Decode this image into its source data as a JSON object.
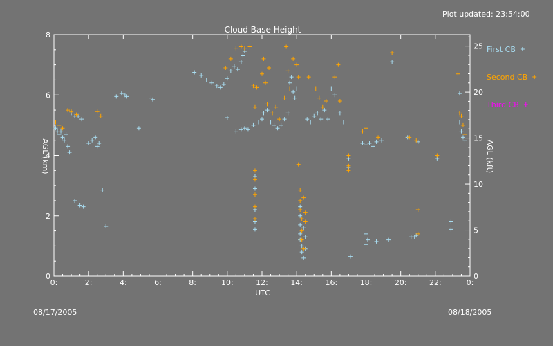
{
  "header": {
    "updated": "Plot updated: 23:54:00"
  },
  "dates": {
    "start": "08/17/2005",
    "end": "08/18/2005"
  },
  "chart_data": {
    "type": "scatter",
    "title": "Cloud Base Height",
    "xlabel": "UTC",
    "ylabel": "AGL (km)",
    "ylabel_right": "AGL (kft)",
    "xlim": [
      0,
      24
    ],
    "ylim": [
      0,
      8
    ],
    "ylim_right": [
      0,
      26.25
    ],
    "xticks": [
      "0:",
      "2:",
      "4:",
      "6:",
      "8:",
      "10:",
      "12:",
      "14:",
      "16:",
      "18:",
      "20:",
      "22:",
      "0:"
    ],
    "yticks": [
      "0",
      "2",
      "4",
      "6",
      "8"
    ],
    "yticks_right": [
      "0",
      "5",
      "10",
      "15",
      "20",
      "25"
    ],
    "grid": false,
    "legend_position": "right",
    "marker": "+",
    "series": [
      {
        "name": "First CB",
        "color": "#a8dcf0",
        "points": [
          [
            0.1,
            4.9
          ],
          [
            0.2,
            4.8
          ],
          [
            0.3,
            4.7
          ],
          [
            0.4,
            4.8
          ],
          [
            0.5,
            4.6
          ],
          [
            0.6,
            4.5
          ],
          [
            0.7,
            4.7
          ],
          [
            0.8,
            4.3
          ],
          [
            0.9,
            4.1
          ],
          [
            1.0,
            5.4
          ],
          [
            1.2,
            5.3
          ],
          [
            1.4,
            5.3
          ],
          [
            1.6,
            5.2
          ],
          [
            1.2,
            2.5
          ],
          [
            1.5,
            2.35
          ],
          [
            1.7,
            2.3
          ],
          [
            2.0,
            4.4
          ],
          [
            2.2,
            4.5
          ],
          [
            2.4,
            4.6
          ],
          [
            2.5,
            4.3
          ],
          [
            2.6,
            4.4
          ],
          [
            2.8,
            2.85
          ],
          [
            3.0,
            1.65
          ],
          [
            3.6,
            5.95
          ],
          [
            3.9,
            6.05
          ],
          [
            4.1,
            6.0
          ],
          [
            4.2,
            5.95
          ],
          [
            4.9,
            4.9
          ],
          [
            5.6,
            5.9
          ],
          [
            5.7,
            5.85
          ],
          [
            8.1,
            6.75
          ],
          [
            8.5,
            6.65
          ],
          [
            8.8,
            6.5
          ],
          [
            9.1,
            6.4
          ],
          [
            9.4,
            6.3
          ],
          [
            9.6,
            6.25
          ],
          [
            9.8,
            6.35
          ],
          [
            10.0,
            6.55
          ],
          [
            10.2,
            6.8
          ],
          [
            10.4,
            6.95
          ],
          [
            10.6,
            6.85
          ],
          [
            10.8,
            7.1
          ],
          [
            10.9,
            7.3
          ],
          [
            11.0,
            7.45
          ],
          [
            10.0,
            5.25
          ],
          [
            10.5,
            4.8
          ],
          [
            10.8,
            4.85
          ],
          [
            11.0,
            4.9
          ],
          [
            11.2,
            4.85
          ],
          [
            11.5,
            5.0
          ],
          [
            11.6,
            3.3
          ],
          [
            11.6,
            2.9
          ],
          [
            11.6,
            2.2
          ],
          [
            11.6,
            1.8
          ],
          [
            11.6,
            1.55
          ],
          [
            11.8,
            5.1
          ],
          [
            12.0,
            5.2
          ],
          [
            12.1,
            5.4
          ],
          [
            12.3,
            5.5
          ],
          [
            12.5,
            5.1
          ],
          [
            12.7,
            5.0
          ],
          [
            12.9,
            4.9
          ],
          [
            13.1,
            5.0
          ],
          [
            13.3,
            5.2
          ],
          [
            13.5,
            5.4
          ],
          [
            13.6,
            6.4
          ],
          [
            13.7,
            6.6
          ],
          [
            13.8,
            6.1
          ],
          [
            13.9,
            5.9
          ],
          [
            14.0,
            6.2
          ],
          [
            14.2,
            2.3
          ],
          [
            14.2,
            2.0
          ],
          [
            14.2,
            1.7
          ],
          [
            14.2,
            1.4
          ],
          [
            14.2,
            1.2
          ],
          [
            14.3,
            1.0
          ],
          [
            14.3,
            0.8
          ],
          [
            14.4,
            0.6
          ],
          [
            14.4,
            1.6
          ],
          [
            14.5,
            1.3
          ],
          [
            14.5,
            0.9
          ],
          [
            14.6,
            5.2
          ],
          [
            14.8,
            5.1
          ],
          [
            15.0,
            5.3
          ],
          [
            15.2,
            5.4
          ],
          [
            15.4,
            5.2
          ],
          [
            15.6,
            5.5
          ],
          [
            15.8,
            5.2
          ],
          [
            16.0,
            6.2
          ],
          [
            16.2,
            6.0
          ],
          [
            16.5,
            5.4
          ],
          [
            16.7,
            5.1
          ],
          [
            17.0,
            3.9
          ],
          [
            17.0,
            3.6
          ],
          [
            17.1,
            0.65
          ],
          [
            17.8,
            4.4
          ],
          [
            18.0,
            4.35
          ],
          [
            18.2,
            4.4
          ],
          [
            18.4,
            4.3
          ],
          [
            18.6,
            4.45
          ],
          [
            18.9,
            4.5
          ],
          [
            18.0,
            1.4
          ],
          [
            18.1,
            1.2
          ],
          [
            18.0,
            1.05
          ],
          [
            18.6,
            1.15
          ],
          [
            19.3,
            1.2
          ],
          [
            19.5,
            7.1
          ],
          [
            20.4,
            4.6
          ],
          [
            20.6,
            1.3
          ],
          [
            20.8,
            1.3
          ],
          [
            20.9,
            1.35
          ],
          [
            21.0,
            4.45
          ],
          [
            22.1,
            3.9
          ],
          [
            22.9,
            1.8
          ],
          [
            22.9,
            1.55
          ],
          [
            23.4,
            6.05
          ],
          [
            23.4,
            5.1
          ],
          [
            23.5,
            4.8
          ],
          [
            23.6,
            4.6
          ],
          [
            23.7,
            4.5
          ]
        ]
      },
      {
        "name": "Second CB",
        "color": "#ffa500",
        "points": [
          [
            0.1,
            5.1
          ],
          [
            0.3,
            5.0
          ],
          [
            0.5,
            4.9
          ],
          [
            0.8,
            5.5
          ],
          [
            1.0,
            5.45
          ],
          [
            1.3,
            5.35
          ],
          [
            2.5,
            5.45
          ],
          [
            2.7,
            5.3
          ],
          [
            9.9,
            6.9
          ],
          [
            10.2,
            7.2
          ],
          [
            10.5,
            7.55
          ],
          [
            10.8,
            7.6
          ],
          [
            11.0,
            7.55
          ],
          [
            11.3,
            7.6
          ],
          [
            11.5,
            6.3
          ],
          [
            11.6,
            5.6
          ],
          [
            11.6,
            3.5
          ],
          [
            11.6,
            3.2
          ],
          [
            11.6,
            2.7
          ],
          [
            11.6,
            2.3
          ],
          [
            11.6,
            1.9
          ],
          [
            11.7,
            6.25
          ],
          [
            12.0,
            6.7
          ],
          [
            12.1,
            7.2
          ],
          [
            12.2,
            6.4
          ],
          [
            12.4,
            6.9
          ],
          [
            12.3,
            5.7
          ],
          [
            12.6,
            5.4
          ],
          [
            12.8,
            5.6
          ],
          [
            13.0,
            5.2
          ],
          [
            13.3,
            5.9
          ],
          [
            13.4,
            7.6
          ],
          [
            13.5,
            6.8
          ],
          [
            13.6,
            6.2
          ],
          [
            13.8,
            7.2
          ],
          [
            14.0,
            7.0
          ],
          [
            14.1,
            6.6
          ],
          [
            14.1,
            3.7
          ],
          [
            14.2,
            2.85
          ],
          [
            14.2,
            2.5
          ],
          [
            14.2,
            2.2
          ],
          [
            14.3,
            1.9
          ],
          [
            14.3,
            1.5
          ],
          [
            14.3,
            1.2
          ],
          [
            14.4,
            0.9
          ],
          [
            14.4,
            2.6
          ],
          [
            14.5,
            2.1
          ],
          [
            14.5,
            1.8
          ],
          [
            14.7,
            6.6
          ],
          [
            15.1,
            6.2
          ],
          [
            15.3,
            5.9
          ],
          [
            15.5,
            5.6
          ],
          [
            15.7,
            5.8
          ],
          [
            16.2,
            6.6
          ],
          [
            16.4,
            7.0
          ],
          [
            16.5,
            5.8
          ],
          [
            17.0,
            4.0
          ],
          [
            17.0,
            3.65
          ],
          [
            17.0,
            3.5
          ],
          [
            17.8,
            4.8
          ],
          [
            18.0,
            4.9
          ],
          [
            18.7,
            4.6
          ],
          [
            19.5,
            7.4
          ],
          [
            20.5,
            4.6
          ],
          [
            20.9,
            4.5
          ],
          [
            21.0,
            2.2
          ],
          [
            21.0,
            1.4
          ],
          [
            22.1,
            4.0
          ],
          [
            23.3,
            6.7
          ],
          [
            23.4,
            5.4
          ],
          [
            23.5,
            5.3
          ],
          [
            23.6,
            5.0
          ],
          [
            23.7,
            4.7
          ]
        ]
      },
      {
        "name": "Third CB",
        "color": "#ff00ff",
        "points": []
      }
    ]
  }
}
